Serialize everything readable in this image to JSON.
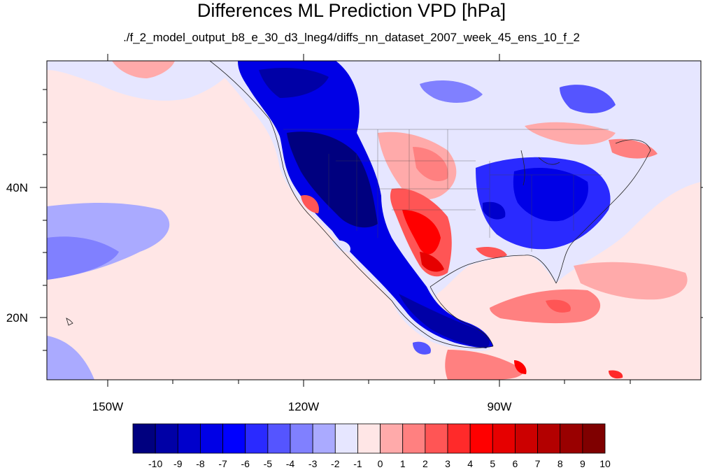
{
  "title": "Differences ML Prediction VPD [hPa]",
  "subtitle": "./f_2_model_output_b8_e_30_d3_lneg4/diffs_nn_dataset_2007_week_45_ens_10_f_2",
  "axes": {
    "lat_labels": [
      "40N",
      "20N"
    ],
    "lon_labels": [
      "150W",
      "120W",
      "90W"
    ]
  },
  "colorbar": {
    "labels": [
      "-10",
      "-9",
      "-8",
      "-7",
      "-6",
      "-5",
      "-4",
      "-3",
      "-2",
      "-1",
      "0",
      "1",
      "2",
      "3",
      "4",
      "5",
      "6",
      "7",
      "8",
      "9",
      "10"
    ],
    "colors": [
      "#00007f",
      "#0000a6",
      "#0000cc",
      "#0000e6",
      "#0000ff",
      "#2a2aff",
      "#5555ff",
      "#8080ff",
      "#aaaaff",
      "#e6e6ff",
      "#ffe6e6",
      "#ffaaaa",
      "#ff8080",
      "#ff5555",
      "#ff2a2a",
      "#ff0000",
      "#e60000",
      "#cc0000",
      "#b30000",
      "#990000",
      "#7f0000"
    ]
  },
  "map": {
    "projection": "cylindrical-equidistant",
    "lon_range": [
      -160,
      -62
    ],
    "lat_range": [
      11,
      60
    ],
    "ocean_color": "#ffe6e6",
    "pacific_band_color": "#aaaaff",
    "west_us_color": "#0000cc",
    "east_us_color": "#2a2aff",
    "texas_color": "#ff2a2a",
    "gulf_color": "#ff8080"
  }
}
